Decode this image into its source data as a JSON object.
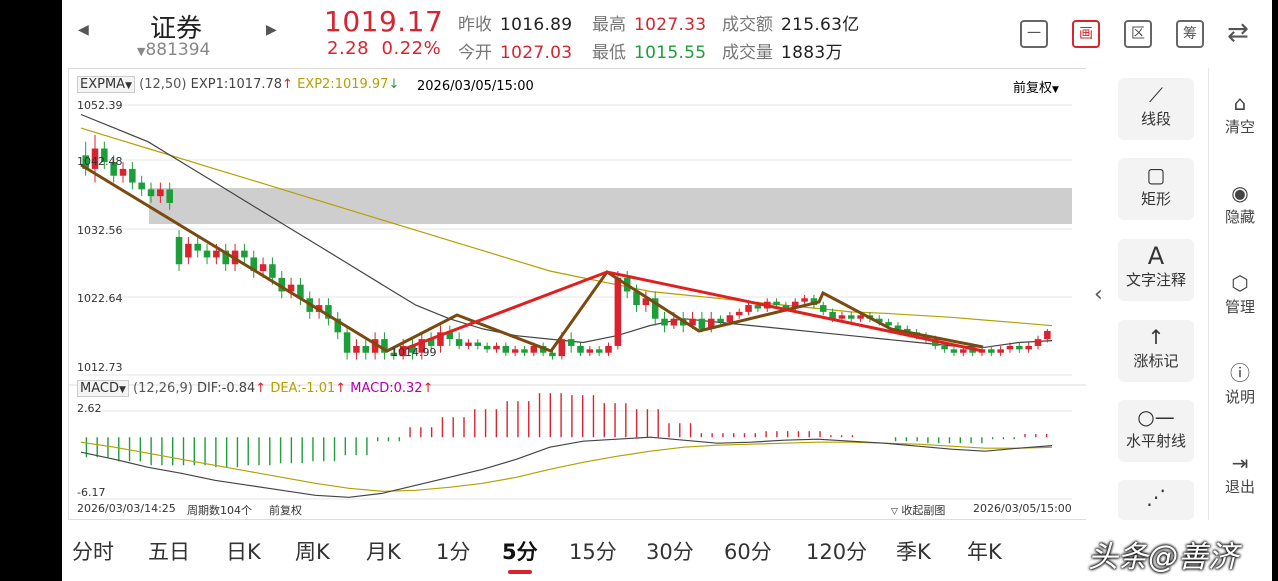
{
  "header": {
    "stock_name": "证券",
    "stock_code": "881394",
    "price": "1019.17",
    "change": "2.28",
    "change_pct": "0.22%",
    "prev_close_label": "昨收",
    "prev_close": "1016.89",
    "open_label": "今开",
    "open": "1027.03",
    "high_label": "最高",
    "high": "1027.33",
    "low_label": "最低",
    "low": "1015.55",
    "amount_label": "成交额",
    "amount": "215.63亿",
    "volume_label": "成交量",
    "volume": "1883万"
  },
  "toolbar": {
    "btn1": "一",
    "btn2": "画",
    "btn3": "区",
    "btn4": "筹"
  },
  "main_indicator": {
    "name": "EXPMA",
    "params": "(12,50)",
    "exp1": "EXP1:1017.78",
    "exp2": "EXP2:1019.97",
    "datetime": "2026/03/05/15:00",
    "adjust": "前复权"
  },
  "price_axis": [
    "1052.39",
    "1042.48",
    "1032.56",
    "1022.64",
    "1012.73"
  ],
  "low_marker": "1014.99",
  "macd_indicator": {
    "name": "MACD",
    "params": "(12,26,9)",
    "dif": "DIF:-0.84",
    "dea": "DEA:-1.01",
    "macd": "MACD:0.32",
    "axis_top": "2.62",
    "axis_bottom": "-6.17"
  },
  "footer": {
    "start": "2026/03/03/14:25",
    "count": "周期数104个",
    "adjust": "前复权",
    "collapse": "收起副图",
    "end": "2026/03/05/15:00"
  },
  "tools": [
    {
      "label": "线段",
      "icon": "line-segment-icon"
    },
    {
      "label": "矩形",
      "icon": "rectangle-icon"
    },
    {
      "label": "文字注释",
      "icon": "text-icon"
    },
    {
      "label": "涨标记",
      "icon": "up-arrow-icon"
    },
    {
      "label": "水平射线",
      "icon": "ray-icon"
    }
  ],
  "side_actions": [
    {
      "label": "清空",
      "icon": "clear-icon"
    },
    {
      "label": "隐藏",
      "icon": "eye-icon"
    },
    {
      "label": "管理",
      "icon": "manage-icon"
    },
    {
      "label": "说明",
      "icon": "help-icon"
    },
    {
      "label": "退出",
      "icon": "exit-icon"
    }
  ],
  "periods": [
    "分时",
    "五日",
    "日K",
    "周K",
    "月K",
    "1分",
    "5分",
    "15分",
    "30分",
    "60分",
    "120分",
    "季K",
    "年K"
  ],
  "active_period": "5分",
  "watermark": "头条@善济",
  "colors": {
    "up": "#d9232e",
    "down": "#1e9e3a",
    "exp1": "#444444",
    "exp2": "#b5a000",
    "trend_brown": "#7a4a10",
    "trend_red": "#e02020"
  },
  "chart_data": {
    "type": "candlestick",
    "ylim": [
      1012.73,
      1052.39
    ],
    "candles": [
      [
        1045,
        1043,
        1047,
        1042
      ],
      [
        1043,
        1046,
        1048,
        1041
      ],
      [
        1046,
        1044,
        1047,
        1043
      ],
      [
        1044,
        1042,
        1045,
        1041
      ],
      [
        1042,
        1043,
        1044,
        1041
      ],
      [
        1043,
        1041,
        1044,
        1040
      ],
      [
        1041,
        1040,
        1042,
        1039
      ],
      [
        1040,
        1039,
        1041,
        1038
      ],
      [
        1039,
        1040,
        1041,
        1038
      ],
      [
        1040,
        1038,
        1041,
        1037
      ],
      [
        1033,
        1029,
        1034,
        1028
      ],
      [
        1030,
        1032,
        1033,
        1029
      ],
      [
        1032,
        1031,
        1033,
        1030
      ],
      [
        1031,
        1030,
        1032,
        1029
      ],
      [
        1030,
        1031,
        1032,
        1029
      ],
      [
        1031,
        1029,
        1032,
        1028
      ],
      [
        1029,
        1031,
        1032,
        1028
      ],
      [
        1031,
        1030,
        1032,
        1029
      ],
      [
        1030,
        1028,
        1031,
        1027
      ],
      [
        1028,
        1029,
        1030,
        1027
      ],
      [
        1029,
        1027,
        1030,
        1026
      ],
      [
        1027,
        1025,
        1028,
        1024
      ],
      [
        1025,
        1026,
        1027,
        1024
      ],
      [
        1026,
        1024,
        1027,
        1023
      ],
      [
        1024,
        1022,
        1025,
        1021
      ],
      [
        1022,
        1023,
        1024,
        1021
      ],
      [
        1023,
        1021,
        1024,
        1020
      ],
      [
        1021,
        1019,
        1022,
        1018
      ],
      [
        1019,
        1016,
        1020,
        1015
      ],
      [
        1016,
        1017,
        1018,
        1015
      ],
      [
        1017,
        1016,
        1018,
        1015
      ],
      [
        1016,
        1018,
        1019,
        1015
      ],
      [
        1018,
        1016,
        1019,
        1015
      ],
      [
        1016,
        1015.5,
        1017,
        1014.99
      ],
      [
        1015.5,
        1017,
        1018,
        1015
      ],
      [
        1017,
        1016,
        1018,
        1015
      ],
      [
        1016,
        1018,
        1019,
        1015
      ],
      [
        1018,
        1017,
        1019,
        1016
      ],
      [
        1017,
        1019,
        1020,
        1016
      ],
      [
        1019,
        1018,
        1020,
        1017
      ],
      [
        1018,
        1017,
        1019,
        1016.5
      ],
      [
        1017,
        1017.5,
        1018,
        1016.5
      ],
      [
        1017.5,
        1017,
        1018,
        1016.5
      ],
      [
        1017,
        1016.5,
        1017.5,
        1016
      ],
      [
        1016.5,
        1017,
        1017.5,
        1016
      ],
      [
        1017,
        1016,
        1017.5,
        1015.5
      ],
      [
        1016,
        1016.5,
        1017,
        1015.5
      ],
      [
        1016.5,
        1016,
        1017,
        1015.5
      ],
      [
        1016,
        1017,
        1017.5,
        1015.5
      ],
      [
        1017,
        1016,
        1017.5,
        1015.5
      ],
      [
        1016,
        1015.5,
        1016.5,
        1015
      ],
      [
        1015.5,
        1018,
        1019,
        1015
      ],
      [
        1018,
        1017,
        1019,
        1016
      ],
      [
        1017,
        1016,
        1017.5,
        1015.5
      ],
      [
        1016,
        1016.5,
        1017,
        1015.5
      ],
      [
        1016.5,
        1016,
        1017,
        1015.5
      ],
      [
        1016,
        1017,
        1017.5,
        1015.5
      ],
      [
        1017,
        1027,
        1028,
        1016.5
      ],
      [
        1027,
        1025,
        1028,
        1024
      ],
      [
        1025,
        1023,
        1026,
        1022
      ],
      [
        1023,
        1024,
        1025,
        1022
      ],
      [
        1024,
        1021,
        1025,
        1020
      ],
      [
        1021,
        1020,
        1022,
        1019
      ],
      [
        1020,
        1021,
        1022,
        1019.5
      ],
      [
        1021,
        1020,
        1022,
        1019
      ],
      [
        1020,
        1021,
        1022,
        1019.5
      ],
      [
        1021,
        1019.5,
        1022,
        1019
      ],
      [
        1019.5,
        1021,
        1022,
        1019
      ],
      [
        1021,
        1020.5,
        1021.5,
        1020
      ],
      [
        1020.5,
        1021.5,
        1022,
        1020
      ],
      [
        1021.5,
        1022,
        1022.5,
        1021
      ],
      [
        1022,
        1023,
        1023.5,
        1021.5
      ],
      [
        1023,
        1022.5,
        1023.5,
        1022
      ],
      [
        1022.5,
        1023.5,
        1024,
        1022
      ],
      [
        1023.5,
        1023,
        1024,
        1022.5
      ],
      [
        1023,
        1022.5,
        1023.5,
        1022
      ],
      [
        1022.5,
        1023.5,
        1024,
        1022
      ],
      [
        1023.5,
        1024,
        1024.5,
        1023
      ],
      [
        1024,
        1023,
        1024.5,
        1022.5
      ],
      [
        1023,
        1022,
        1023.5,
        1021.5
      ],
      [
        1022,
        1021,
        1022.5,
        1020.5
      ],
      [
        1021,
        1021.5,
        1022,
        1020.5
      ],
      [
        1021.5,
        1021,
        1022,
        1020.5
      ],
      [
        1021,
        1021.5,
        1022,
        1020.5
      ],
      [
        1021.5,
        1021,
        1022,
        1020.5
      ],
      [
        1021,
        1020.5,
        1021.5,
        1020
      ],
      [
        1020.5,
        1020,
        1021,
        1019.5
      ],
      [
        1020,
        1019.5,
        1020.5,
        1019
      ],
      [
        1019.5,
        1019,
        1020,
        1018.5
      ],
      [
        1019,
        1018.5,
        1019.5,
        1018
      ],
      [
        1018.5,
        1018,
        1019,
        1017.5
      ],
      [
        1018,
        1017,
        1018.5,
        1016.5
      ],
      [
        1017,
        1016.5,
        1017.5,
        1016
      ],
      [
        1016.5,
        1016,
        1017,
        1015.5
      ],
      [
        1016,
        1016.5,
        1017,
        1015.5
      ],
      [
        1016.5,
        1016,
        1017,
        1015.5
      ],
      [
        1016,
        1016.5,
        1017,
        1015.5
      ],
      [
        1016.5,
        1016,
        1017,
        1015.5
      ],
      [
        1016,
        1016.5,
        1017,
        1015.5
      ],
      [
        1016.5,
        1017,
        1017.5,
        1016
      ],
      [
        1017,
        1016.5,
        1017.5,
        1016
      ],
      [
        1016.5,
        1017,
        1017.5,
        1016
      ],
      [
        1017,
        1018,
        1018.5,
        1016.5
      ],
      [
        1018,
        1019.2,
        1019.5,
        1017.5
      ]
    ],
    "exp1": [
      1051,
      1049,
      1047,
      1044,
      1041,
      1038,
      1035,
      1032,
      1029,
      1026,
      1023,
      1021,
      1019.5,
      1018.5,
      1018,
      1017.5,
      1018.5,
      1020,
      1021,
      1020.5,
      1020,
      1019.5,
      1019,
      1018.5,
      1018,
      1017.5,
      1017,
      1016.8,
      1017.5,
      1017.78
    ],
    "exp2": [
      1049,
      1047.5,
      1046,
      1044.5,
      1043,
      1041.5,
      1040,
      1038.5,
      1037,
      1035.5,
      1034,
      1032.5,
      1031,
      1029.5,
      1028,
      1027,
      1026,
      1025,
      1024.5,
      1024,
      1023.5,
      1023,
      1022.5,
      1022,
      1021.8,
      1021.5,
      1021.2,
      1020.8,
      1020.4,
      1019.97
    ],
    "macd_ylim": [
      -6.17,
      2.62
    ],
    "dif": [
      -1.5,
      -2.2,
      -3,
      -3.6,
      -4.3,
      -4.8,
      -5.3,
      -5.8,
      -6,
      -5.6,
      -4.8,
      -4,
      -3.2,
      -2.2,
      -1,
      -0.4,
      -0.2,
      0,
      -0.3,
      -0.6,
      -0.5,
      -0.3,
      -0.2,
      -0.4,
      -0.6,
      -0.9,
      -1.2,
      -1.4,
      -1.1,
      -0.84
    ],
    "dea": [
      -0.5,
      -1,
      -1.6,
      -2.2,
      -2.8,
      -3.4,
      -4,
      -4.6,
      -5.1,
      -5.4,
      -5.3,
      -5,
      -4.6,
      -4,
      -3.2,
      -2.5,
      -1.9,
      -1.4,
      -1,
      -0.8,
      -0.7,
      -0.6,
      -0.5,
      -0.5,
      -0.6,
      -0.7,
      -0.9,
      -1.1,
      -1.1,
      -1.01
    ],
    "macd_hist": [
      -2,
      -2.4,
      -2.8,
      -2.8,
      -3,
      -2.8,
      -2.6,
      -2.4,
      -1.8,
      -0.4,
      1,
      2,
      2.8,
      3.6,
      4.4,
      4.2,
      3.4,
      2.8,
      1.4,
      0.4,
      0.4,
      0.6,
      0.6,
      0.2,
      0,
      -0.4,
      -0.6,
      -0.6,
      -0.2,
      0.32
    ]
  }
}
